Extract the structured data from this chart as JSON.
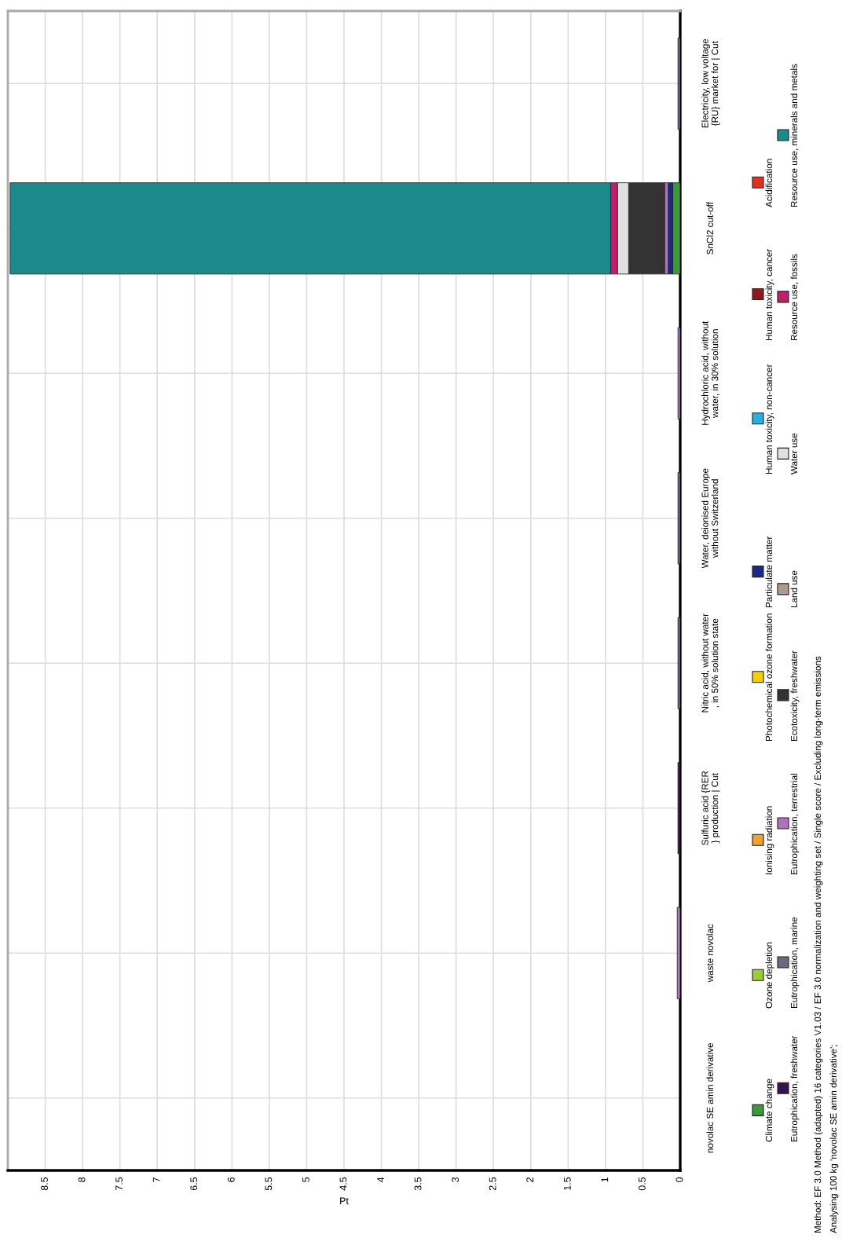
{
  "chart_data": {
    "type": "bar",
    "orientation": "horizontal",
    "stacked": true,
    "xlabel": "Pt",
    "categories": [
      "Electricity, low voltage\n{RU} market for | Cut",
      "SnCl2 cut-off",
      "Hydrochloric acid, without\nwater, in 30% solution",
      "Water, deionised Europe\nwithout Switzerland",
      "Nitric acid, without water\n, in 50% solution state",
      "Sulfuric acid {RER\n} production | Cut",
      "waste novolac",
      "novolac SE amin derivative"
    ],
    "series": [
      {
        "name": "Climate change",
        "color": "#3a9a3a",
        "values": [
          0,
          0.1,
          0,
          0,
          0,
          0,
          0,
          0
        ]
      },
      {
        "name": "Ozone depletion",
        "color": "#9acd32",
        "values": [
          0,
          0,
          0,
          0,
          0,
          0,
          0,
          0
        ]
      },
      {
        "name": "Ionising radiation",
        "color": "#f0a030",
        "values": [
          0,
          0,
          0,
          0,
          0,
          0,
          0,
          0
        ]
      },
      {
        "name": "Photochemical ozone formation",
        "color": "#f5d000",
        "values": [
          0,
          0,
          0,
          0,
          0,
          0,
          0,
          0
        ]
      },
      {
        "name": "Particulate matter",
        "color": "#1a2a8a",
        "values": [
          0,
          0.06,
          0,
          0,
          0,
          0,
          0,
          0
        ]
      },
      {
        "name": "Human toxicity, non-cancer",
        "color": "#2ab0e0",
        "values": [
          0,
          0,
          0,
          0,
          0,
          0,
          0,
          0
        ]
      },
      {
        "name": "Human toxicity, cancer",
        "color": "#8b1a1a",
        "values": [
          0,
          0,
          0,
          0,
          0,
          0,
          0,
          0
        ]
      },
      {
        "name": "Acidification",
        "color": "#e03020",
        "values": [
          0,
          0,
          0,
          0,
          0,
          0,
          0,
          0
        ]
      },
      {
        "name": "Eutrophication, freshwater",
        "color": "#3a1050",
        "values": [
          0,
          0,
          0,
          0,
          0,
          0.03,
          0,
          0
        ]
      },
      {
        "name": "Eutrophication, marine",
        "color": "#6a6a80",
        "values": [
          0.03,
          0,
          0,
          0.03,
          0.03,
          0,
          0,
          0
        ]
      },
      {
        "name": "Eutrophication, terrestrial",
        "color": "#b070c0",
        "values": [
          0,
          0.05,
          0.03,
          0,
          0,
          0,
          0.04,
          0
        ]
      },
      {
        "name": "Ecotoxicity, freshwater",
        "color": "#333333",
        "values": [
          0,
          0.48,
          0,
          0,
          0,
          0,
          0,
          0
        ]
      },
      {
        "name": "Land use",
        "color": "#b09a90",
        "values": [
          0,
          0,
          0,
          0,
          0,
          0,
          0,
          0
        ]
      },
      {
        "name": "Water use",
        "color": "#e0e0e0",
        "values": [
          0,
          0.15,
          0,
          0,
          0,
          0,
          0,
          0
        ]
      },
      {
        "name": "Resource use, fossils",
        "color": "#c0206a",
        "values": [
          0,
          0.09,
          0,
          0,
          0,
          0,
          0,
          0
        ]
      },
      {
        "name": "Resource use, minerals and metals",
        "color": "#1a8a8a",
        "values": [
          0,
          8.04,
          0,
          0,
          0,
          0,
          0,
          0
        ]
      }
    ],
    "xlim": [
      9,
      0
    ],
    "xticks": [
      8.5,
      8,
      7.5,
      7,
      6.5,
      6,
      5.5,
      5,
      4.5,
      4,
      3.5,
      3,
      2.5,
      2,
      1.5,
      1,
      0.5,
      0
    ],
    "grid": true,
    "legend": "right",
    "annotations": [
      "Method: EF 3.0 Method (adapted) 16 categories V1.03 / EF 3.0 normalization and weighting set / Single score / Excluding long-term emissions",
      "Analysing 100 kg 'novolac SE amin derivative';"
    ]
  }
}
